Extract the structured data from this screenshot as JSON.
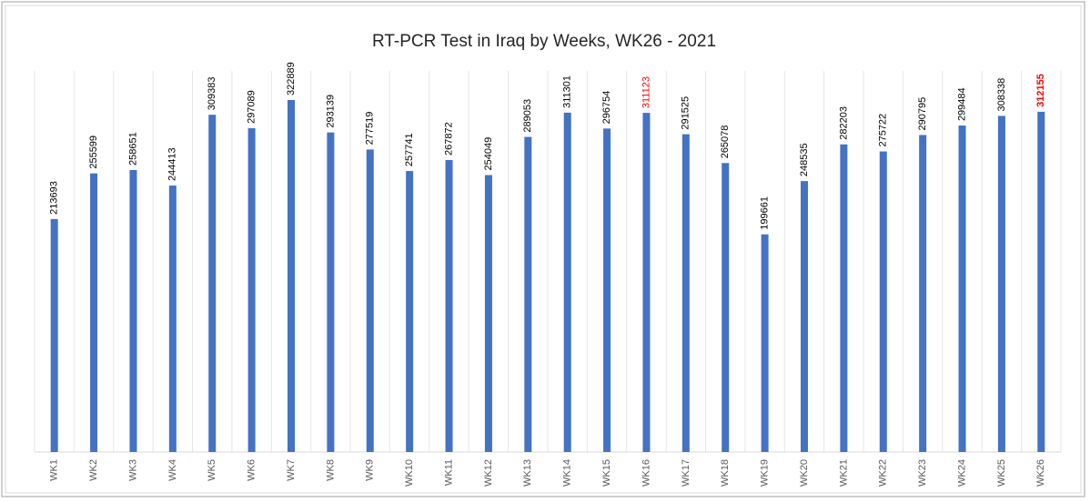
{
  "chart_data": {
    "type": "bar",
    "title": "RT-PCR Test in Iraq by Weeks, WK26 - 2021",
    "categories": [
      "WK1",
      "WK2",
      "WK3",
      "WK4",
      "WK5",
      "WK6",
      "WK7",
      "WK8",
      "WK9",
      "WK10",
      "WK11",
      "WK12",
      "WK13",
      "WK14",
      "WK15",
      "WK16",
      "WK17",
      "WK18",
      "WK19",
      "WK20",
      "WK21",
      "WK22",
      "WK23",
      "WK24",
      "WK25",
      "WK26"
    ],
    "values": [
      213693,
      255599,
      258651,
      244413,
      309383,
      297089,
      322889,
      293139,
      277519,
      257741,
      267872,
      254049,
      289053,
      311301,
      296754,
      311123,
      291525,
      265078,
      199661,
      248535,
      282203,
      275722,
      290795,
      299484,
      308338,
      312155
    ],
    "color": "#4472c4",
    "value_label_colors": [
      "#000000",
      "#000000",
      "#000000",
      "#000000",
      "#000000",
      "#000000",
      "#000000",
      "#000000",
      "#000000",
      "#000000",
      "#000000",
      "#000000",
      "#000000",
      "#000000",
      "#000000",
      "#ff0000",
      "#000000",
      "#000000",
      "#000000",
      "#000000",
      "#000000",
      "#000000",
      "#000000",
      "#000000",
      "#000000",
      "#ff0000"
    ],
    "grid": true
  }
}
